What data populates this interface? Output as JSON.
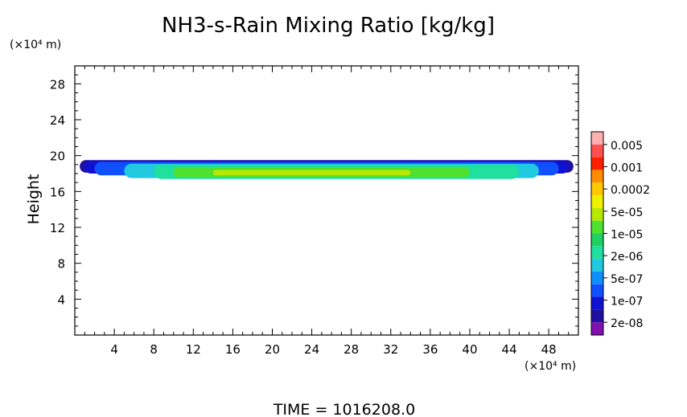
{
  "chart_data": {
    "type": "heatmap",
    "title": "NH3-s-Rain Mixing Ratio [kg/kg]",
    "ylabel": "Height",
    "y_unit_label": "(×10⁴ m)",
    "x_unit_label": "(×10⁴ m)",
    "xlim": [
      0,
      51
    ],
    "ylim": [
      0,
      30
    ],
    "x_ticks": [
      4,
      8,
      12,
      16,
      20,
      24,
      28,
      32,
      36,
      40,
      44,
      48
    ],
    "x_tick_labels": [
      "4",
      "8",
      "12",
      "16",
      "20",
      "24",
      "28",
      "32",
      "36",
      "40",
      "44",
      "48"
    ],
    "y_ticks": [
      4,
      8,
      12,
      16,
      20,
      24,
      28
    ],
    "y_tick_labels": [
      "4",
      "8",
      "12",
      "16",
      "20",
      "24",
      "28"
    ],
    "grid": false,
    "legend_placement": "right",
    "colorbar": {
      "labels": [
        "0.005",
        "0.001",
        "0.0002",
        "5e-05",
        "1e-05",
        "2e-06",
        "5e-07",
        "1e-07",
        "2e-08"
      ],
      "colors": [
        "#ffb0b0",
        "#ff5050",
        "#ff2000",
        "#ff8c00",
        "#ffc800",
        "#f0f000",
        "#b8e800",
        "#50e030",
        "#20d060",
        "#20e0a0",
        "#20c8e0",
        "#1090ff",
        "#1050ff",
        "#1010d0",
        "#2010a0",
        "#8010b0"
      ]
    },
    "contour_layers": [
      {
        "color": "#2010a0",
        "x": [
          0.5,
          50.5
        ],
        "y": [
          18.1,
          19.5
        ]
      },
      {
        "color": "#1010d0",
        "x": [
          1,
          50
        ],
        "y": [
          18.0,
          19.4
        ]
      },
      {
        "color": "#1050ff",
        "x": [
          2,
          49
        ],
        "y": [
          17.8,
          19.3
        ]
      },
      {
        "color": "#20c8e0",
        "x": [
          5,
          47
        ],
        "y": [
          17.5,
          19.1
        ]
      },
      {
        "color": "#20e0a0",
        "x": [
          8,
          45
        ],
        "y": [
          17.4,
          19.0
        ]
      },
      {
        "color": "#50e030",
        "x": [
          10,
          40
        ],
        "y": [
          17.6,
          18.7
        ]
      },
      {
        "color": "#b8e800",
        "x": [
          14,
          34
        ],
        "y": [
          17.8,
          18.4
        ]
      }
    ],
    "time_label": "TIME = 1016208.0"
  }
}
